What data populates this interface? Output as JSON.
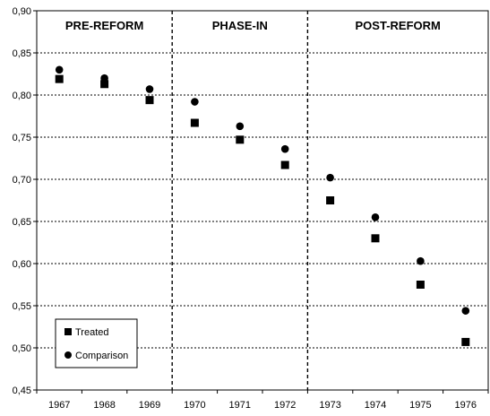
{
  "chart_data": {
    "type": "scatter",
    "title": "",
    "xlabel": "",
    "ylabel": "",
    "categories": [
      "1967",
      "1968",
      "1969",
      "1970",
      "1971",
      "1972",
      "1973",
      "1974",
      "1975",
      "1976"
    ],
    "ylim": [
      0.45,
      0.9
    ],
    "yticks": [
      "0,45",
      "0,50",
      "0,55",
      "0,60",
      "0,65",
      "0,70",
      "0,75",
      "0,80",
      "0,85",
      "0,90"
    ],
    "grid": true,
    "legend_position": "bottom-left",
    "phases": [
      {
        "label": "PRE-REFORM",
        "start": "1967",
        "end": "1969"
      },
      {
        "label": "PHASE-IN",
        "start": "1970",
        "end": "1972"
      },
      {
        "label": "POST-REFORM",
        "start": "1973",
        "end": "1976"
      }
    ],
    "series": [
      {
        "name": "Treated",
        "marker": "square",
        "values": [
          0.819,
          0.813,
          0.794,
          0.767,
          0.747,
          0.717,
          0.675,
          0.63,
          0.575,
          0.507
        ]
      },
      {
        "name": "Comparison",
        "marker": "circle",
        "values": [
          0.83,
          0.82,
          0.807,
          0.792,
          0.763,
          0.736,
          0.702,
          0.655,
          0.603,
          0.544
        ]
      }
    ]
  }
}
